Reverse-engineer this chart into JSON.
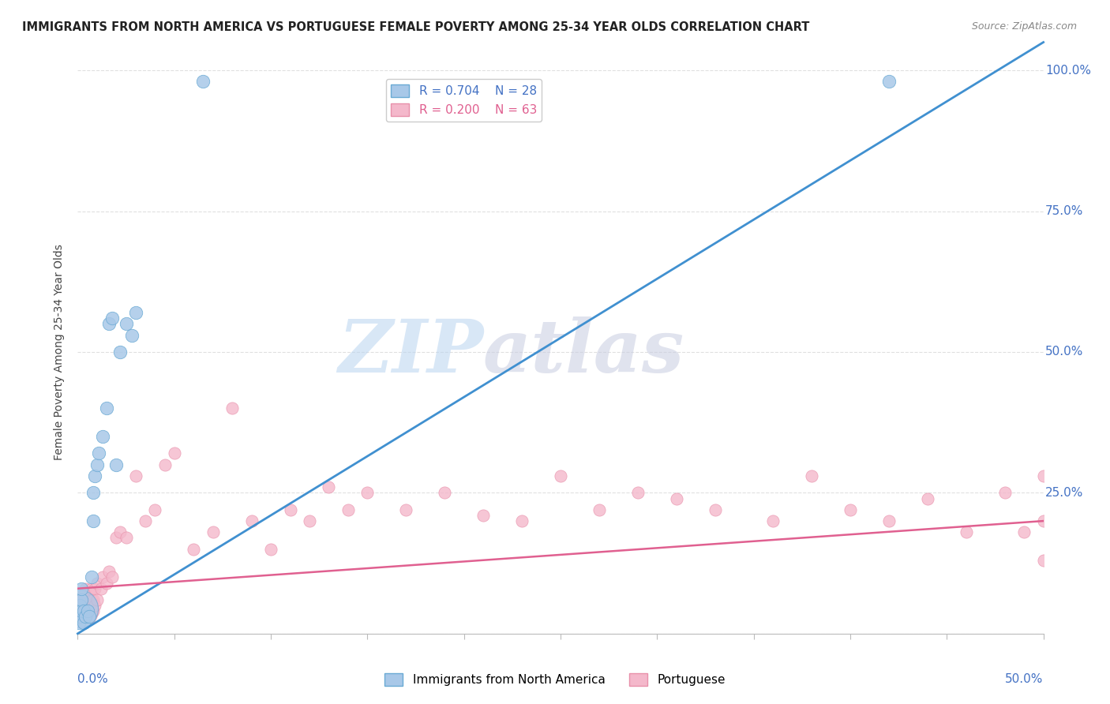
{
  "title": "IMMIGRANTS FROM NORTH AMERICA VS PORTUGUESE FEMALE POVERTY AMONG 25-34 YEAR OLDS CORRELATION CHART",
  "source": "Source: ZipAtlas.com",
  "ylabel": "Female Poverty Among 25-34 Year Olds",
  "blue_R": 0.704,
  "blue_N": 28,
  "pink_R": 0.2,
  "pink_N": 63,
  "blue_color": "#a8c8e8",
  "blue_edge_color": "#6aaad4",
  "pink_color": "#f4b8cb",
  "pink_edge_color": "#e890aa",
  "blue_line_color": "#4090d0",
  "pink_line_color": "#e06090",
  "legend_blue_label": "Immigrants from North America",
  "legend_pink_label": "Portuguese",
  "xlim": [
    0.0,
    0.5
  ],
  "ylim": [
    0.0,
    1.0
  ],
  "blue_scatter_x": [
    0.0005,
    0.001,
    0.001,
    0.002,
    0.002,
    0.002,
    0.003,
    0.003,
    0.004,
    0.005,
    0.006,
    0.007,
    0.008,
    0.008,
    0.009,
    0.01,
    0.011,
    0.013,
    0.015,
    0.016,
    0.018,
    0.02,
    0.022,
    0.025,
    0.028,
    0.03,
    0.065,
    0.42
  ],
  "blue_scatter_y": [
    0.02,
    0.03,
    0.05,
    0.04,
    0.06,
    0.08,
    0.02,
    0.04,
    0.03,
    0.04,
    0.03,
    0.1,
    0.25,
    0.2,
    0.28,
    0.3,
    0.32,
    0.35,
    0.4,
    0.55,
    0.56,
    0.3,
    0.5,
    0.55,
    0.53,
    0.57,
    0.98,
    0.98
  ],
  "pink_scatter_x": [
    0.001,
    0.001,
    0.002,
    0.002,
    0.003,
    0.003,
    0.004,
    0.004,
    0.005,
    0.005,
    0.006,
    0.006,
    0.007,
    0.007,
    0.008,
    0.008,
    0.009,
    0.009,
    0.01,
    0.01,
    0.012,
    0.013,
    0.015,
    0.016,
    0.018,
    0.02,
    0.022,
    0.025,
    0.03,
    0.035,
    0.04,
    0.045,
    0.05,
    0.06,
    0.07,
    0.08,
    0.09,
    0.1,
    0.11,
    0.12,
    0.13,
    0.14,
    0.15,
    0.17,
    0.19,
    0.21,
    0.23,
    0.25,
    0.27,
    0.29,
    0.31,
    0.33,
    0.36,
    0.38,
    0.4,
    0.42,
    0.44,
    0.46,
    0.48,
    0.49,
    0.5,
    0.5,
    0.5
  ],
  "pink_scatter_y": [
    0.03,
    0.05,
    0.04,
    0.06,
    0.03,
    0.07,
    0.05,
    0.08,
    0.04,
    0.06,
    0.05,
    0.07,
    0.06,
    0.08,
    0.04,
    0.06,
    0.05,
    0.08,
    0.06,
    0.09,
    0.08,
    0.1,
    0.09,
    0.11,
    0.1,
    0.17,
    0.18,
    0.17,
    0.28,
    0.2,
    0.22,
    0.3,
    0.32,
    0.15,
    0.18,
    0.4,
    0.2,
    0.15,
    0.22,
    0.2,
    0.26,
    0.22,
    0.25,
    0.22,
    0.25,
    0.21,
    0.2,
    0.28,
    0.22,
    0.25,
    0.24,
    0.22,
    0.2,
    0.28,
    0.22,
    0.2,
    0.24,
    0.18,
    0.25,
    0.18,
    0.28,
    0.2,
    0.13
  ],
  "watermark_zip": "ZIP",
  "watermark_atlas": "atlas",
  "background_color": "#ffffff",
  "grid_color": "#e0e0e0",
  "right_tick_color": "#4472c4",
  "bottom_label_color": "#4472c4"
}
